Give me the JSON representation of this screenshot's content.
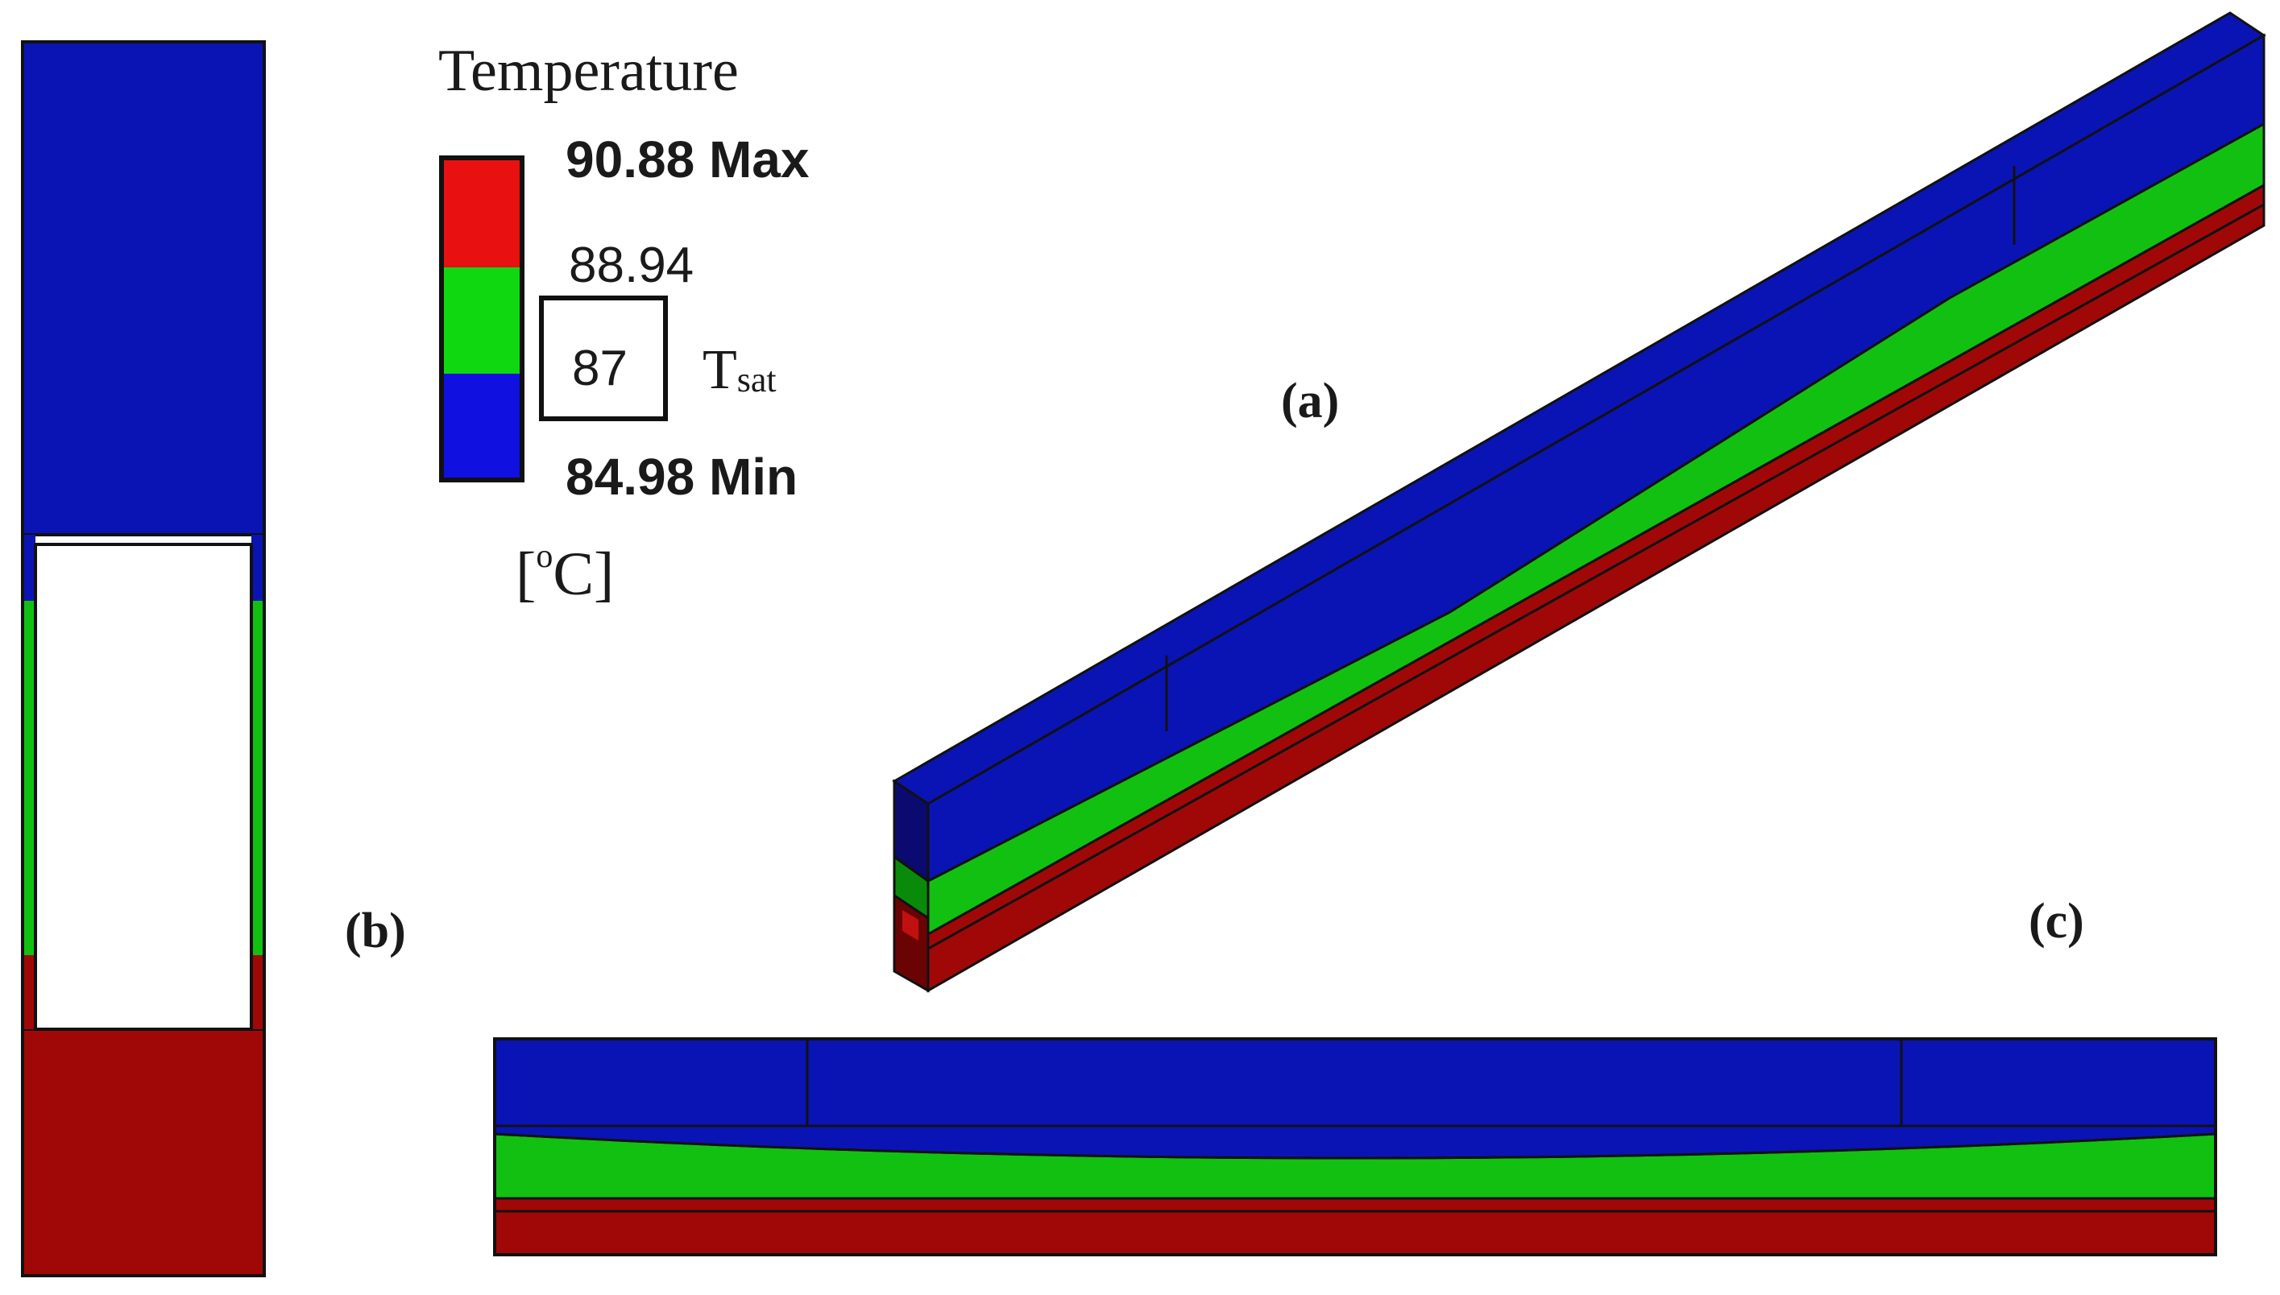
{
  "legend": {
    "title": "Temperature",
    "max_label": "90.88 Max",
    "mid_value": "88.94",
    "tsat_value": "87",
    "tsat_symbol": "T",
    "tsat_subscript": "sat",
    "min_label": "84.98 Min",
    "unit_open": "[",
    "unit_degree": "o",
    "unit_letter": "C",
    "unit_close": "]",
    "colors": {
      "high": "#e81010",
      "mid": "#10d810",
      "low": "#1010e0"
    }
  },
  "views": {
    "a": {
      "label": "(a)"
    },
    "b": {
      "label": "(b)"
    },
    "c": {
      "label": "(c)"
    }
  },
  "colors": {
    "vapor_blue": "#0a14b4",
    "liquid_green": "#12c012",
    "wall_red": "#a00808",
    "outline": "#111111"
  }
}
